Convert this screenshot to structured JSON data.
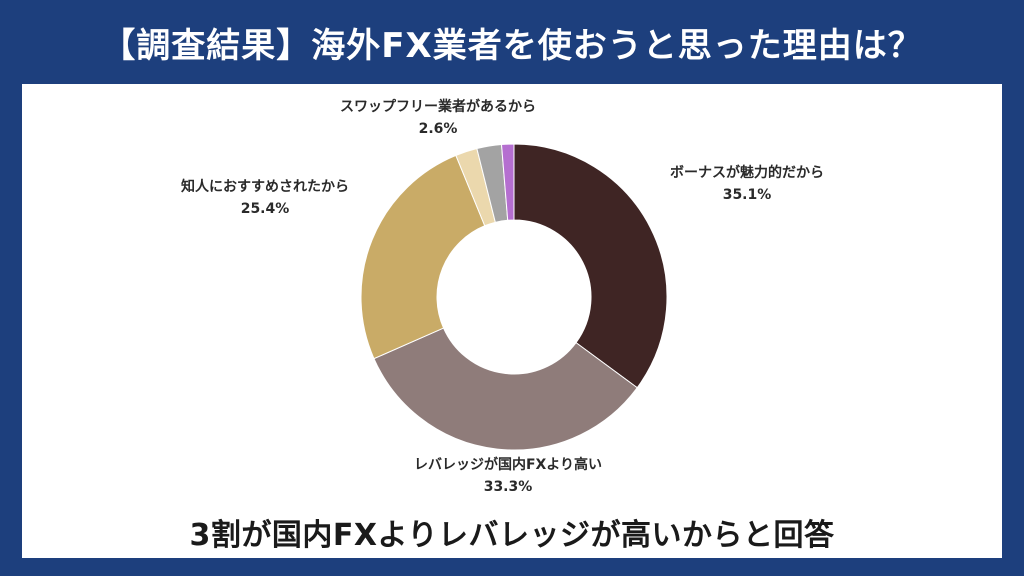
{
  "header": {
    "title": "【調査結果】海外FX業者を使おうと思った理由は？"
  },
  "caption": "3割が国内FXよりレバレッジが高いからと回答",
  "colors": {
    "background": "#1d3f7d",
    "panel": "#ffffff"
  },
  "chart_data": {
    "type": "pie",
    "title": "【調査結果】海外FX業者を使おうと思った理由は？",
    "donut": true,
    "unit": "%",
    "slices": [
      {
        "label": "ボーナスが魅力的だから",
        "value": 35.1,
        "value_label": "35.1%",
        "color": "#3f2524"
      },
      {
        "label": "レバレッジが国内FXより高い",
        "value": 33.3,
        "value_label": "33.3%",
        "color": "#8f7c7a"
      },
      {
        "label": "知人におすすめされたから",
        "value": 25.4,
        "value_label": "25.4%",
        "color": "#c9ab67"
      },
      {
        "label": "",
        "value": 2.3,
        "value_label": "",
        "color": "#ebd8ad"
      },
      {
        "label": "スワップフリー業者があるから",
        "value": 2.6,
        "value_label": "2.6%",
        "color": "#a3a3a3"
      },
      {
        "label": "",
        "value": 1.3,
        "value_label": "",
        "color": "#b56fd0"
      }
    ]
  }
}
